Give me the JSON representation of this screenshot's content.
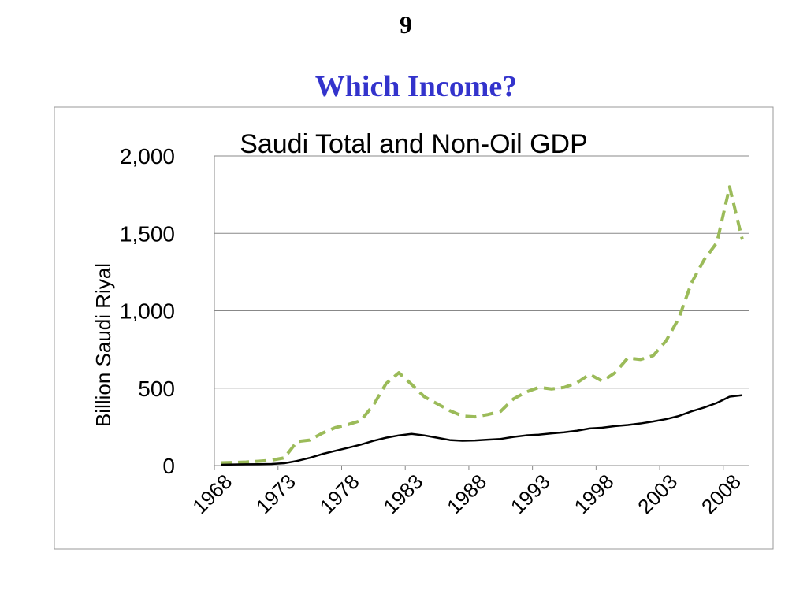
{
  "slide_number": "9",
  "heading": "Which Income?",
  "chart_data": {
    "type": "line",
    "title": "Saudi Total and Non-Oil GDP",
    "y_label": "Billion Saudi Riyal",
    "x": [
      1968,
      1969,
      1970,
      1971,
      1972,
      1973,
      1974,
      1975,
      1976,
      1977,
      1978,
      1979,
      1980,
      1981,
      1982,
      1983,
      1984,
      1985,
      1986,
      1987,
      1988,
      1989,
      1990,
      1991,
      1992,
      1993,
      1994,
      1995,
      1996,
      1997,
      1998,
      1999,
      2000,
      2001,
      2002,
      2003,
      2004,
      2005,
      2006,
      2007,
      2008,
      2009
    ],
    "series": [
      {
        "color": "#9bbb59",
        "dashed": true,
        "values": [
          18,
          20,
          23,
          28,
          35,
          50,
          155,
          165,
          210,
          245,
          265,
          290,
          390,
          530,
          600,
          525,
          445,
          400,
          355,
          320,
          315,
          330,
          350,
          430,
          475,
          505,
          495,
          505,
          535,
          590,
          545,
          600,
          695,
          685,
          710,
          805,
          950,
          1180,
          1330,
          1440,
          1800,
          1460
        ]
      },
      {
        "color": "#000000",
        "dashed": false,
        "values": [
          5,
          7,
          8,
          9,
          10,
          15,
          30,
          50,
          75,
          95,
          115,
          135,
          160,
          180,
          195,
          205,
          195,
          180,
          165,
          160,
          162,
          167,
          172,
          185,
          195,
          200,
          208,
          215,
          225,
          240,
          245,
          255,
          262,
          272,
          285,
          300,
          320,
          350,
          375,
          405,
          445,
          455
        ]
      }
    ],
    "xlim": [
      1967.5,
      2009.5
    ],
    "xticks": [
      1968,
      1973,
      1978,
      1983,
      1988,
      1993,
      1998,
      2003,
      2008
    ],
    "ylim": [
      0,
      2000
    ],
    "yticks": [
      0,
      500,
      {
        "value": 1000,
        "label": "1,000"
      },
      {
        "value": 1500,
        "label": "1,500"
      },
      {
        "value": 2000,
        "label": "2,000"
      }
    ],
    "grid": true
  }
}
